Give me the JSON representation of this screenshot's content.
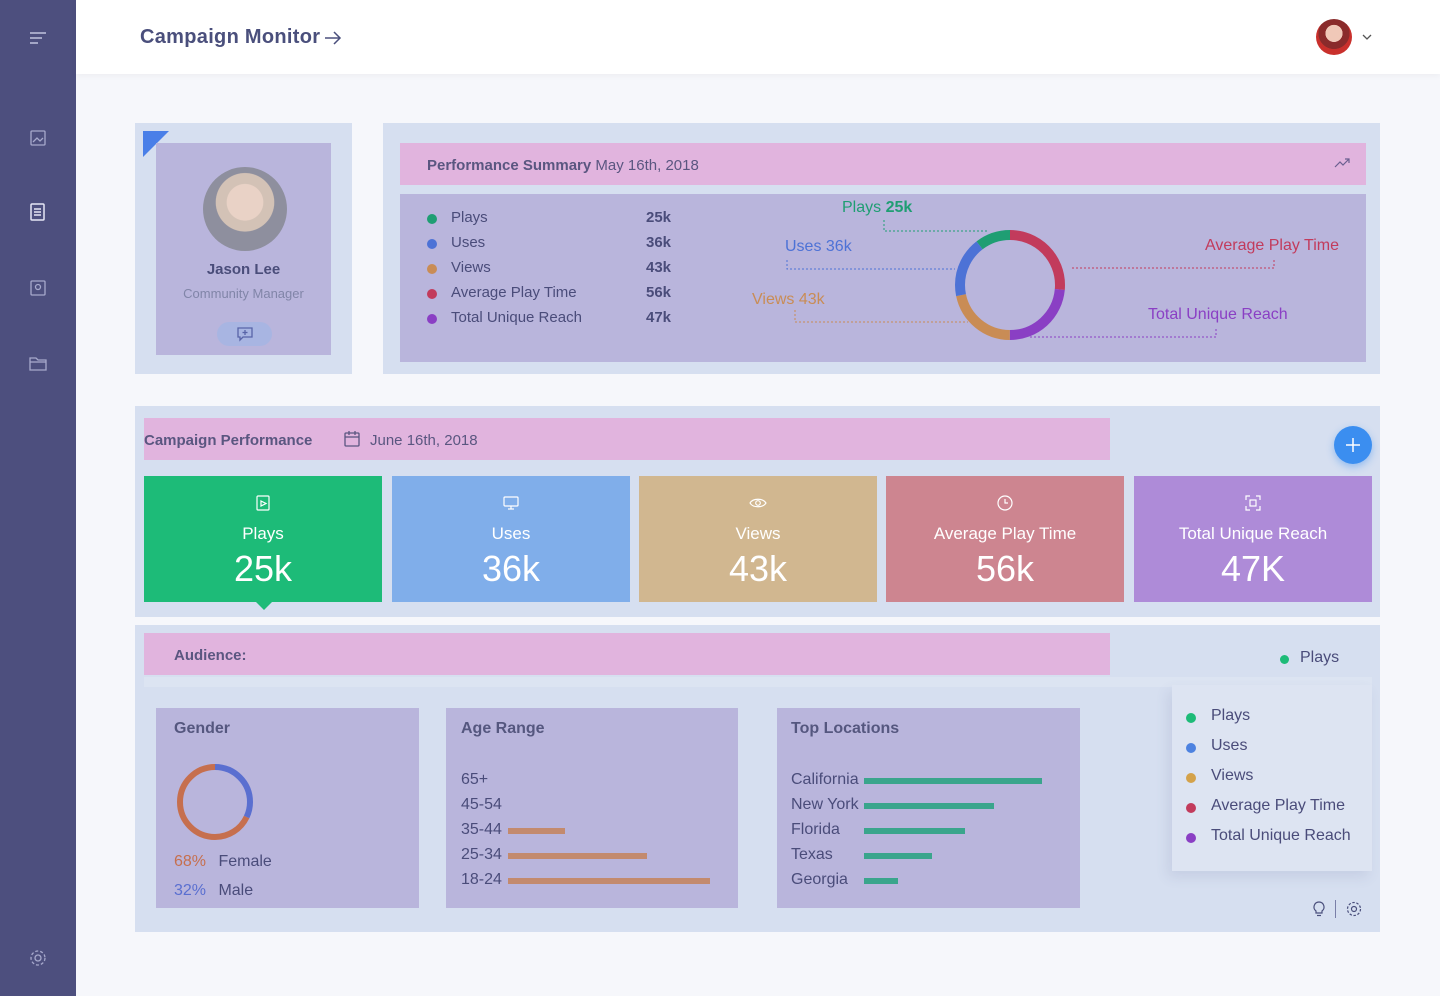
{
  "header": {
    "title": "Campaign  Monitor"
  },
  "sidebar": {
    "icons": [
      "menu-icon",
      "image-icon",
      "document-icon",
      "contact-icon",
      "folder-icon",
      "gear-icon"
    ]
  },
  "profile": {
    "name": "Jason Lee",
    "role": "Community Manager"
  },
  "summary": {
    "title": "Performance Summary",
    "date": "May 16th, 2018",
    "stats": [
      {
        "label": "Plays",
        "value": "25k",
        "color": "#1f9e73"
      },
      {
        "label": "Uses",
        "value": "36k",
        "color": "#4d72d6"
      },
      {
        "label": "Views",
        "value": "43k",
        "color": "#c98c55"
      },
      {
        "label": "Average Play Time",
        "value": "56k",
        "color": "#c23b5c"
      },
      {
        "label": "Total Unique Reach",
        "value": "47k",
        "color": "#8a3fc4"
      }
    ],
    "callouts": {
      "plays_label": "Plays",
      "plays_value": "25k",
      "uses": "Uses 36k",
      "views": "Views 43k",
      "apt": "Average Play Time",
      "reach": "Total Unique Reach"
    }
  },
  "campaign": {
    "title": "Campaign  Performance",
    "date": "June 16th, 2018",
    "tiles": [
      {
        "label": "Plays",
        "value": "25k",
        "color": "#1dbb78",
        "icon": "video-icon"
      },
      {
        "label": "Uses",
        "value": "36k",
        "color": "#80aeea",
        "icon": "monitor-icon"
      },
      {
        "label": "Views",
        "value": "43k",
        "color": "#d1b790",
        "icon": "eye-icon"
      },
      {
        "label": "Average Play Time",
        "value": "56k",
        "color": "#cd8590",
        "icon": "clock-icon"
      },
      {
        "label": "Total Unique Reach",
        "value": "47K",
        "color": "#ae8bd8",
        "icon": "focus-icon"
      }
    ]
  },
  "audience": {
    "title": "Audience:",
    "filter_selected": "Plays",
    "filter_options": [
      {
        "label": "Plays",
        "color": "#1dbb78"
      },
      {
        "label": "Uses",
        "color": "#4d82e0"
      },
      {
        "label": "Views",
        "color": "#d4a24a"
      },
      {
        "label": "Average Play Time",
        "color": "#c23b5c"
      },
      {
        "label": "Total Unique Reach",
        "color": "#8a3fc4"
      }
    ],
    "gender": {
      "title": "Gender",
      "female_pct": "68%",
      "female_label": "Female",
      "male_pct": "32%",
      "male_label": "Male",
      "female_value": 68,
      "male_value": 32,
      "female_color": "#c66f4e",
      "male_color": "#5a6fd0"
    },
    "age": {
      "title": "Age Range",
      "rows": [
        {
          "label": "65+",
          "value": 0
        },
        {
          "label": "45-54",
          "value": 0
        },
        {
          "label": "35-44",
          "value": 28
        },
        {
          "label": "25-34",
          "value": 69
        },
        {
          "label": "18-24",
          "value": 100
        }
      ],
      "bar_color": "#c38a6e"
    },
    "locations": {
      "title": "Top Locations",
      "rows": [
        {
          "label": "California",
          "value": 100
        },
        {
          "label": "New York",
          "value": 73
        },
        {
          "label": "Florida",
          "value": 57
        },
        {
          "label": "Texas",
          "value": 38
        },
        {
          "label": "Georgia",
          "value": 19
        }
      ],
      "bar_color": "#3aa58c"
    }
  }
}
